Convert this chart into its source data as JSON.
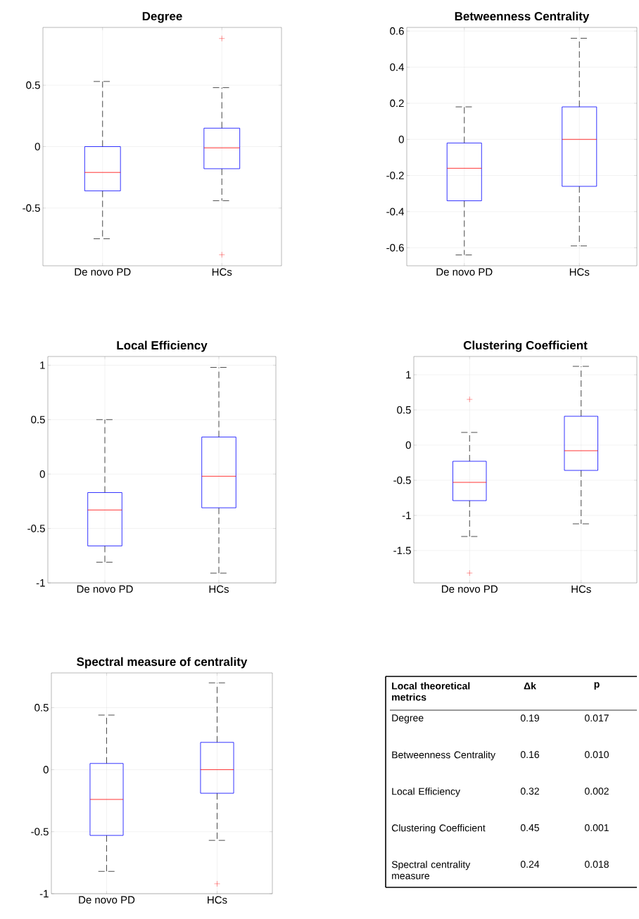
{
  "chart_data": [
    {
      "type": "box",
      "title": "Degree",
      "categories": [
        "De novo PD",
        "HCs"
      ],
      "color": "#0000ff",
      "grid": true,
      "ylim": [
        -0.97,
        0.97
      ],
      "yticks": [
        -0.5,
        0,
        0.5
      ],
      "boxes": [
        {
          "low": -0.75,
          "q1": -0.36,
          "median": -0.21,
          "q3": 0.0,
          "high": 0.53
        },
        {
          "low": -0.44,
          "q1": -0.18,
          "median": -0.01,
          "q3": 0.15,
          "high": 0.48,
          "outliers": [
            0.88,
            -0.88
          ]
        }
      ]
    },
    {
      "type": "box",
      "title": "Betweenness Centrality",
      "categories": [
        "De novo PD",
        "HCs"
      ],
      "color": "#0000ff",
      "grid": true,
      "ylim": [
        -0.7,
        0.62
      ],
      "yticks": [
        -0.6,
        -0.4,
        -0.2,
        0,
        0.2,
        0.4,
        0.6
      ],
      "boxes": [
        {
          "low": -0.64,
          "q1": -0.34,
          "median": -0.16,
          "q3": -0.02,
          "high": 0.18
        },
        {
          "low": -0.59,
          "q1": -0.26,
          "median": 0.0,
          "q3": 0.18,
          "high": 0.56
        }
      ]
    },
    {
      "type": "box",
      "title": "Local Efficiency",
      "categories": [
        "De novo PD",
        "HCs"
      ],
      "color": "#0000ff",
      "grid": true,
      "ylim": [
        -1,
        1.08
      ],
      "yticks": [
        -1,
        -0.5,
        0,
        0.5,
        1
      ],
      "boxes": [
        {
          "low": -0.81,
          "q1": -0.66,
          "median": -0.33,
          "q3": -0.17,
          "high": 0.5
        },
        {
          "low": -0.91,
          "q1": -0.31,
          "median": -0.02,
          "q3": 0.34,
          "high": 0.98
        }
      ]
    },
    {
      "type": "box",
      "title": "Clustering Coefficient",
      "categories": [
        "De novo PD",
        "HCs"
      ],
      "color": "#0000ff",
      "grid": true,
      "ylim": [
        -1.96,
        1.26
      ],
      "yticks": [
        -1.5,
        -1,
        -0.5,
        0,
        0.5,
        1
      ],
      "boxes": [
        {
          "low": -1.3,
          "q1": -0.79,
          "median": -0.53,
          "q3": -0.23,
          "high": 0.18,
          "outliers": [
            0.65,
            -1.82
          ]
        },
        {
          "low": -1.12,
          "q1": -0.36,
          "median": -0.08,
          "q3": 0.41,
          "high": 1.12
        }
      ]
    },
    {
      "type": "box",
      "title": "Spectral measure of centrality",
      "categories": [
        "De novo PD",
        "HCs"
      ],
      "color": "#0000ff",
      "grid": true,
      "ylim": [
        -1,
        0.78
      ],
      "yticks": [
        -1,
        -0.5,
        0,
        0.5
      ],
      "boxes": [
        {
          "low": -0.82,
          "q1": -0.53,
          "median": -0.24,
          "q3": 0.05,
          "high": 0.44
        },
        {
          "low": -0.57,
          "q1": -0.19,
          "median": 0.0,
          "q3": 0.22,
          "high": 0.7,
          "outliers": [
            -0.92
          ]
        }
      ]
    },
    {
      "type": "other",
      "title": "Local theoretical metrics",
      "data_labels": true,
      "categories": [
        "Degree",
        "Betweenness Centrality",
        "Local Efficiency",
        "Clustering Coefficient",
        "Spectral centrality measure"
      ],
      "series": [
        {
          "name": "Δk",
          "values": [
            0.19,
            0.16,
            0.32,
            0.45,
            0.24
          ]
        },
        {
          "name": "p",
          "values": [
            0.017,
            0.01,
            0.002,
            0.001,
            0.018
          ],
          "value_labels": [
            "0.017",
            "0.010",
            "0.002",
            "0.001",
            "0.018"
          ]
        }
      ]
    }
  ]
}
